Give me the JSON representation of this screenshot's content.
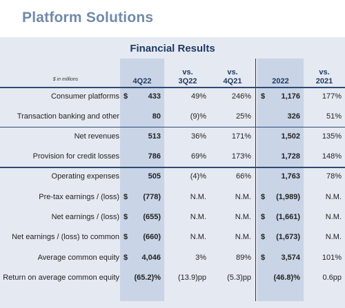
{
  "title": "Platform Solutions",
  "panel_title": "Financial Results",
  "units_note": "$ in millions",
  "headers": {
    "q4": "4Q22",
    "vs3q_top": "vs.",
    "vs3q_bottom": "3Q22",
    "vs4q_top": "vs.",
    "vs4q_bottom": "4Q21",
    "y22": "2022",
    "vs21_top": "vs.",
    "vs21_bottom": "2021"
  },
  "rows": [
    {
      "label": "Consumer platforms",
      "dollar_q": "$",
      "q4": "433",
      "vs3q": "49%",
      "vs4q": "246%",
      "dollar_y": "$",
      "y22": "1,176",
      "vs21": "177%"
    },
    {
      "label": "Transaction banking and other",
      "dollar_q": "",
      "q4": "80",
      "vs3q": "(9)%",
      "vs4q": "25%",
      "dollar_y": "",
      "y22": "326",
      "vs21": "51%"
    },
    {
      "label": "Net revenues",
      "dollar_q": "",
      "q4": "513",
      "vs3q": "36%",
      "vs4q": "171%",
      "dollar_y": "",
      "y22": "1,502",
      "vs21": "135%"
    },
    {
      "label": "Provision for credit losses",
      "dollar_q": "",
      "q4": "786",
      "vs3q": "69%",
      "vs4q": "173%",
      "dollar_y": "",
      "y22": "1,728",
      "vs21": "148%"
    },
    {
      "label": "Operating expenses",
      "dollar_q": "",
      "q4": "505",
      "vs3q": "(4)%",
      "vs4q": "66%",
      "dollar_y": "",
      "y22": "1,763",
      "vs21": "78%"
    },
    {
      "label": "Pre-tax earnings / (loss)",
      "dollar_q": "$",
      "q4": "(778)",
      "vs3q": "N.M.",
      "vs4q": "N.M.",
      "dollar_y": "$",
      "y22": "(1,989)",
      "vs21": "N.M."
    },
    {
      "label": "Net earnings / (loss)",
      "dollar_q": "$",
      "q4": "(655)",
      "vs3q": "N.M.",
      "vs4q": "N.M.",
      "dollar_y": "$",
      "y22": "(1,661)",
      "vs21": "N.M."
    },
    {
      "label": "Net earnings / (loss) to common",
      "dollar_q": "$",
      "q4": "(660)",
      "vs3q": "N.M.",
      "vs4q": "N.M.",
      "dollar_y": "$",
      "y22": "(1,673)",
      "vs21": "N.M."
    },
    {
      "label": "Average common equity",
      "dollar_q": "$",
      "q4": "4,046",
      "vs3q": "3%",
      "vs4q": "89%",
      "dollar_y": "$",
      "y22": "3,574",
      "vs21": "101%"
    },
    {
      "label": "Return on average common equity",
      "dollar_q": "",
      "q4": "(65.2)%",
      "vs3q": "(13.9)pp",
      "vs4q": "(5.3)pp",
      "dollar_y": "",
      "y22": "(46.8)%",
      "vs21": "0.6pp"
    }
  ]
}
